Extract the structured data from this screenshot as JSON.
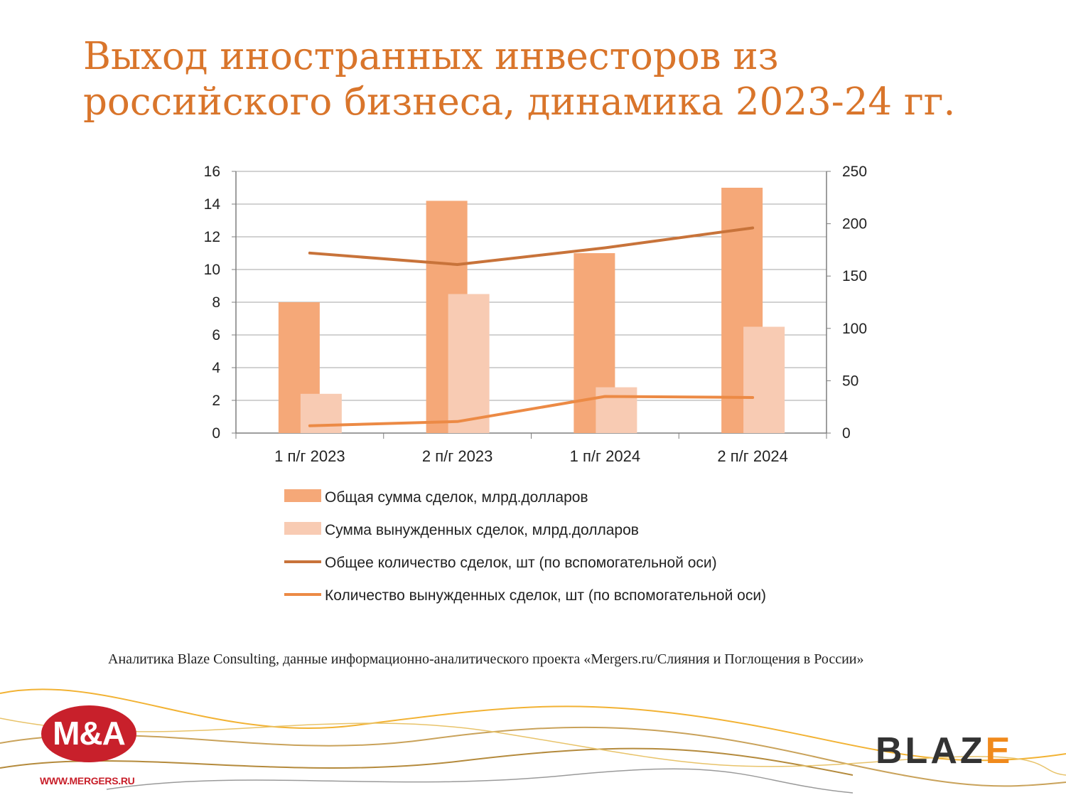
{
  "title": "Выход иностранных инвесторов из российского бизнеса, динамика 2023-24 гг.",
  "source": "Аналитика  Blaze Consulting,  данные информационно-аналитического проекта «Mergers.ru/Слияния и Поглощения в России»",
  "logos": {
    "ma": "M&A",
    "ma_url": "WWW.MERGERS.RU",
    "blaze_main": "BLAZ",
    "blaze_last": "E"
  },
  "colors": {
    "title": "#d9752b",
    "bar_total": "#f5a878",
    "bar_forced": "#f8cbb3",
    "line_total": "#c8733a",
    "line_forced": "#ec8a45",
    "ma": "#c8202b",
    "blaze_accent": "#f08a1c"
  },
  "chart_data": {
    "type": "bar",
    "categories": [
      "1 п/г 2023",
      "2 п/г 2023",
      "1 п/г 2024",
      "2 п/г 2024"
    ],
    "ylim": [
      0,
      16
    ],
    "yticks": [
      "0",
      "2",
      "4",
      "6",
      "8",
      "10",
      "12",
      "14",
      "16"
    ],
    "y2lim": [
      0,
      250
    ],
    "y2ticks": [
      "0",
      "50",
      "100",
      "150",
      "200",
      "250"
    ],
    "grid": true,
    "legend_position": "bottom",
    "series": [
      {
        "name": "Общая сумма сделок, млрд.долларов",
        "kind": "bar",
        "axis": "left",
        "color": "#f5a878",
        "values": [
          8.0,
          14.2,
          11.0,
          15.0
        ]
      },
      {
        "name": "Сумма вынужденных сделок, млрд.долларов",
        "kind": "bar",
        "axis": "left",
        "color": "#f8cbb3",
        "values": [
          2.4,
          8.5,
          2.8,
          6.5
        ]
      },
      {
        "name": "Общее количество сделок, шт (по вспомогательной оси)",
        "kind": "line",
        "axis": "right",
        "color": "#c8733a",
        "values": [
          172,
          161,
          177,
          196
        ]
      },
      {
        "name": "Количество вынужденных сделок, шт (по вспомогательной оси)",
        "kind": "line",
        "axis": "right",
        "color": "#ec8a45",
        "values": [
          7,
          11,
          35,
          34
        ]
      }
    ]
  }
}
